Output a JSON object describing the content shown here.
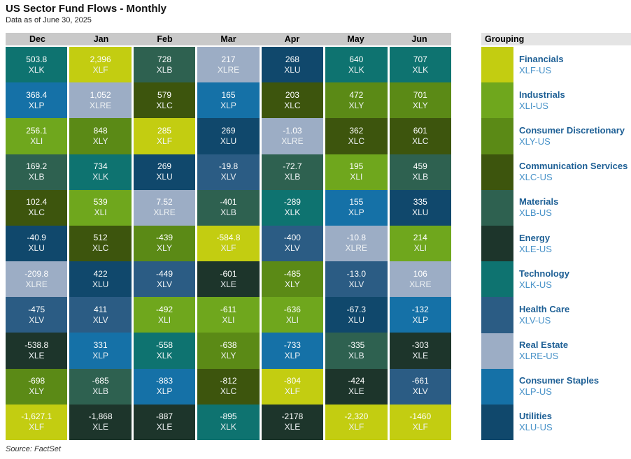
{
  "chart_data": {
    "type": "table",
    "title": "US Sector Fund Flows - Monthly",
    "subtitle": "Data as of June 30, 2025",
    "legend_header": "Grouping",
    "source": "Source: FactSet",
    "columns": [
      "Dec",
      "Jan",
      "Feb",
      "Mar",
      "Apr",
      "May",
      "Jun"
    ],
    "sector_colors": {
      "XLF": "#c3cd11",
      "XLI": "#6fa71d",
      "XLY": "#5b8a16",
      "XLC": "#3d550d",
      "XLB": "#2e6150",
      "XLE": "#1d352b",
      "XLK": "#0e7370",
      "XLV": "#2b5c84",
      "XLRE": "#9cadc5",
      "XLP": "#1571a7",
      "XLU": "#10486c"
    },
    "groups": [
      {
        "name": "Financials",
        "ticker": "XLF-US",
        "color": "#c3cd11"
      },
      {
        "name": "Industrials",
        "ticker": "XLI-US",
        "color": "#6fa71d"
      },
      {
        "name": "Consumer Discretionary",
        "ticker": "XLY-US",
        "color": "#5b8a16"
      },
      {
        "name": "Communication Services",
        "ticker": "XLC-US",
        "color": "#3d550d"
      },
      {
        "name": "Materials",
        "ticker": "XLB-US",
        "color": "#2e6150"
      },
      {
        "name": "Energy",
        "ticker": "XLE-US",
        "color": "#1d352b"
      },
      {
        "name": "Technology",
        "ticker": "XLK-US",
        "color": "#0e7370"
      },
      {
        "name": "Health Care",
        "ticker": "XLV-US",
        "color": "#2b5c84"
      },
      {
        "name": "Real Estate",
        "ticker": "XLRE-US",
        "color": "#9cadc5"
      },
      {
        "name": "Consumer Staples",
        "ticker": "XLP-US",
        "color": "#1571a7"
      },
      {
        "name": "Utilities",
        "ticker": "XLU-US",
        "color": "#10486c"
      }
    ],
    "rows": [
      [
        {
          "display": "503.8",
          "value": 503.8,
          "ticker": "XLK"
        },
        {
          "display": "2,396",
          "value": 2396,
          "ticker": "XLF"
        },
        {
          "display": "728",
          "value": 728,
          "ticker": "XLB"
        },
        {
          "display": "217",
          "value": 217,
          "ticker": "XLRE"
        },
        {
          "display": "268",
          "value": 268,
          "ticker": "XLU"
        },
        {
          "display": "640",
          "value": 640,
          "ticker": "XLK"
        },
        {
          "display": "707",
          "value": 707,
          "ticker": "XLK"
        }
      ],
      [
        {
          "display": "368.4",
          "value": 368.4,
          "ticker": "XLP"
        },
        {
          "display": "1,052",
          "value": 1052,
          "ticker": "XLRE"
        },
        {
          "display": "579",
          "value": 579,
          "ticker": "XLC"
        },
        {
          "display": "165",
          "value": 165,
          "ticker": "XLP"
        },
        {
          "display": "203",
          "value": 203,
          "ticker": "XLC"
        },
        {
          "display": "472",
          "value": 472,
          "ticker": "XLY"
        },
        {
          "display": "701",
          "value": 701,
          "ticker": "XLY"
        }
      ],
      [
        {
          "display": "256.1",
          "value": 256.1,
          "ticker": "XLI"
        },
        {
          "display": "848",
          "value": 848,
          "ticker": "XLY"
        },
        {
          "display": "285",
          "value": 285,
          "ticker": "XLF"
        },
        {
          "display": "269",
          "value": 269,
          "ticker": "XLU"
        },
        {
          "display": "-1.03",
          "value": -1.03,
          "ticker": "XLRE"
        },
        {
          "display": "362",
          "value": 362,
          "ticker": "XLC"
        },
        {
          "display": "601",
          "value": 601,
          "ticker": "XLC"
        }
      ],
      [
        {
          "display": "169.2",
          "value": 169.2,
          "ticker": "XLB"
        },
        {
          "display": "734",
          "value": 734,
          "ticker": "XLK"
        },
        {
          "display": "269",
          "value": 269,
          "ticker": "XLU"
        },
        {
          "display": "-19.8",
          "value": -19.8,
          "ticker": "XLV"
        },
        {
          "display": "-72.7",
          "value": -72.7,
          "ticker": "XLB"
        },
        {
          "display": "195",
          "value": 195,
          "ticker": "XLI"
        },
        {
          "display": "459",
          "value": 459,
          "ticker": "XLB"
        }
      ],
      [
        {
          "display": "102.4",
          "value": 102.4,
          "ticker": "XLC"
        },
        {
          "display": "539",
          "value": 539,
          "ticker": "XLI"
        },
        {
          "display": "7.52",
          "value": 7.52,
          "ticker": "XLRE"
        },
        {
          "display": "-401",
          "value": -401,
          "ticker": "XLB"
        },
        {
          "display": "-289",
          "value": -289,
          "ticker": "XLK"
        },
        {
          "display": "155",
          "value": 155,
          "ticker": "XLP"
        },
        {
          "display": "335",
          "value": 335,
          "ticker": "XLU"
        }
      ],
      [
        {
          "display": "-40.9",
          "value": -40.9,
          "ticker": "XLU"
        },
        {
          "display": "512",
          "value": 512,
          "ticker": "XLC"
        },
        {
          "display": "-439",
          "value": -439,
          "ticker": "XLY"
        },
        {
          "display": "-584.8",
          "value": -584.8,
          "ticker": "XLF"
        },
        {
          "display": "-400",
          "value": -400,
          "ticker": "XLV"
        },
        {
          "display": "-10.8",
          "value": -10.8,
          "ticker": "XLRE"
        },
        {
          "display": "214",
          "value": 214,
          "ticker": "XLI"
        }
      ],
      [
        {
          "display": "-209.8",
          "value": -209.8,
          "ticker": "XLRE"
        },
        {
          "display": "422",
          "value": 422,
          "ticker": "XLU"
        },
        {
          "display": "-449",
          "value": -449,
          "ticker": "XLV"
        },
        {
          "display": "-601",
          "value": -601,
          "ticker": "XLE"
        },
        {
          "display": "-485",
          "value": -485,
          "ticker": "XLY"
        },
        {
          "display": "-13.0",
          "value": -13.0,
          "ticker": "XLV"
        },
        {
          "display": "106",
          "value": 106,
          "ticker": "XLRE"
        }
      ],
      [
        {
          "display": "-475",
          "value": -475,
          "ticker": "XLV"
        },
        {
          "display": "411",
          "value": 411,
          "ticker": "XLV"
        },
        {
          "display": "-492",
          "value": -492,
          "ticker": "XLI"
        },
        {
          "display": "-611",
          "value": -611,
          "ticker": "XLI"
        },
        {
          "display": "-636",
          "value": -636,
          "ticker": "XLI"
        },
        {
          "display": "-67.3",
          "value": -67.3,
          "ticker": "XLU"
        },
        {
          "display": "-132",
          "value": -132,
          "ticker": "XLP"
        }
      ],
      [
        {
          "display": "-538.8",
          "value": -538.8,
          "ticker": "XLE"
        },
        {
          "display": "331",
          "value": 331,
          "ticker": "XLP"
        },
        {
          "display": "-558",
          "value": -558,
          "ticker": "XLK"
        },
        {
          "display": "-638",
          "value": -638,
          "ticker": "XLY"
        },
        {
          "display": "-733",
          "value": -733,
          "ticker": "XLP"
        },
        {
          "display": "-335",
          "value": -335,
          "ticker": "XLB"
        },
        {
          "display": "-303",
          "value": -303,
          "ticker": "XLE"
        }
      ],
      [
        {
          "display": "-698",
          "value": -698,
          "ticker": "XLY"
        },
        {
          "display": "-685",
          "value": -685,
          "ticker": "XLB"
        },
        {
          "display": "-883",
          "value": -883,
          "ticker": "XLP"
        },
        {
          "display": "-812",
          "value": -812,
          "ticker": "XLC"
        },
        {
          "display": "-804",
          "value": -804,
          "ticker": "XLF"
        },
        {
          "display": "-424",
          "value": -424,
          "ticker": "XLE"
        },
        {
          "display": "-661",
          "value": -661,
          "ticker": "XLV"
        }
      ],
      [
        {
          "display": "-1,627.1",
          "value": -1627.1,
          "ticker": "XLF"
        },
        {
          "display": "-1,868",
          "value": -1868,
          "ticker": "XLE"
        },
        {
          "display": "-887",
          "value": -887,
          "ticker": "XLE"
        },
        {
          "display": "-895",
          "value": -895,
          "ticker": "XLK"
        },
        {
          "display": "-2178",
          "value": -2178,
          "ticker": "XLE"
        },
        {
          "display": "-2,320",
          "value": -2320,
          "ticker": "XLF"
        },
        {
          "display": "-1460",
          "value": -1460,
          "ticker": "XLF"
        }
      ]
    ]
  }
}
